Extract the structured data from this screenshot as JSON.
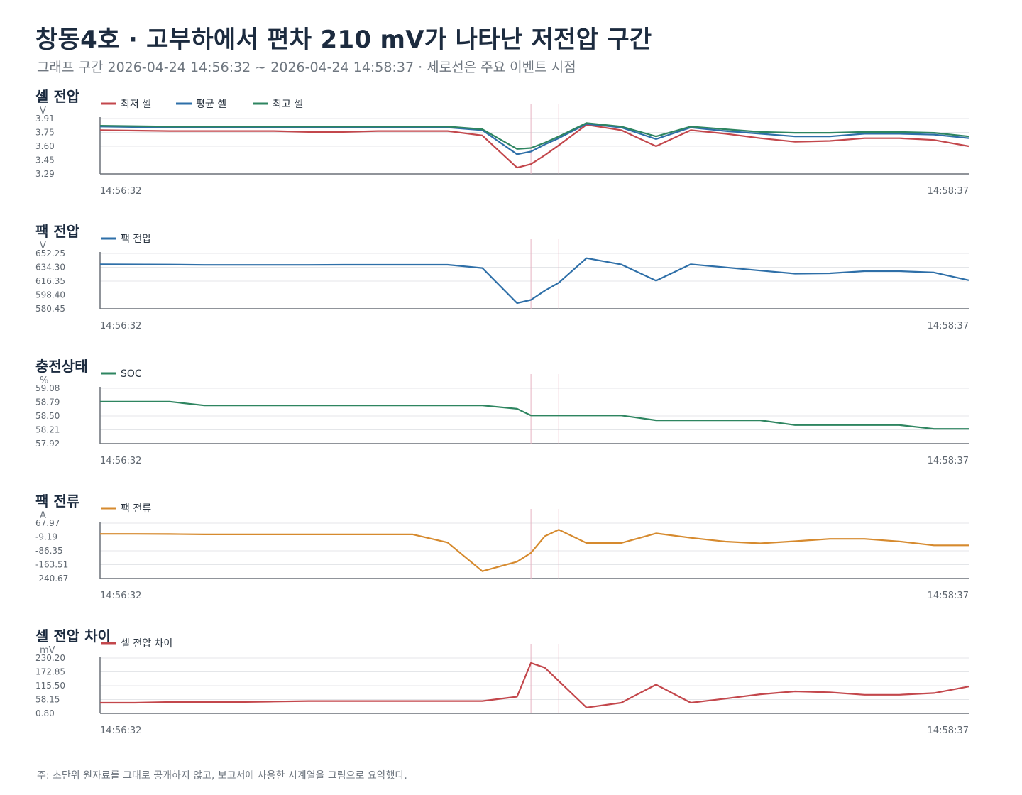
{
  "title": "창동4호 · 고부하에서 편차 210 mV가 나타난 저전압 구간",
  "subtitle": "그래프 구간 2026-04-24 14:56:32 ~ 2026-04-24 14:58:37 · 세로선은 주요 이벤트 시점",
  "footnote": "주: 초단위 원자료를 그대로 공개하지 않고, 보고서에 사용한 시계열을 그림으로 요약했다.",
  "colors": {
    "red": "#c3474c",
    "blue": "#2e6fa8",
    "green": "#2e8560",
    "orange": "#d68a2e",
    "grid": "#e4e6e9",
    "axis": "#6b7178",
    "event": "#e6b3c2"
  },
  "chart_data": [
    {
      "type": "line",
      "title": "셀 전압",
      "ylabel": "V",
      "yticks": [
        "3.91",
        "3.75",
        "3.60",
        "3.45",
        "3.29"
      ],
      "ylim": [
        3.29,
        3.91
      ],
      "x_start": "14:56:32",
      "x_end": "14:58:37",
      "x_seconds": [
        0,
        10,
        15,
        20,
        25,
        30,
        35,
        40,
        45,
        50,
        55,
        60,
        62,
        64,
        66,
        70,
        75,
        80,
        85,
        90,
        95,
        100,
        105,
        110,
        115,
        120,
        125
      ],
      "event_lines_seconds": [
        62,
        66
      ],
      "series": [
        {
          "name": "최저 셀",
          "color": "#c3474c",
          "values": [
            3.78,
            3.77,
            3.77,
            3.77,
            3.77,
            3.76,
            3.76,
            3.77,
            3.77,
            3.77,
            3.72,
            3.36,
            3.4,
            3.5,
            3.61,
            3.84,
            3.78,
            3.6,
            3.78,
            3.74,
            3.69,
            3.65,
            3.66,
            3.69,
            3.69,
            3.67,
            3.6
          ]
        },
        {
          "name": "평균 셀",
          "color": "#2e6fa8",
          "values": [
            3.82,
            3.81,
            3.81,
            3.81,
            3.81,
            3.81,
            3.81,
            3.81,
            3.81,
            3.81,
            3.78,
            3.51,
            3.54,
            3.62,
            3.69,
            3.85,
            3.81,
            3.68,
            3.81,
            3.77,
            3.74,
            3.71,
            3.71,
            3.74,
            3.74,
            3.73,
            3.69
          ]
        },
        {
          "name": "최고 셀",
          "color": "#2e8560",
          "values": [
            3.83,
            3.82,
            3.82,
            3.82,
            3.82,
            3.82,
            3.82,
            3.82,
            3.82,
            3.82,
            3.79,
            3.57,
            3.58,
            3.64,
            3.71,
            3.86,
            3.82,
            3.71,
            3.82,
            3.79,
            3.76,
            3.75,
            3.75,
            3.76,
            3.76,
            3.75,
            3.71
          ]
        }
      ]
    },
    {
      "type": "line",
      "title": "팩 전압",
      "ylabel": "V",
      "yticks": [
        "652.25",
        "634.30",
        "616.35",
        "598.40",
        "580.45"
      ],
      "ylim": [
        580.45,
        652.25
      ],
      "x_start": "14:56:32",
      "x_end": "14:58:37",
      "x_seconds": [
        0,
        10,
        15,
        20,
        25,
        30,
        35,
        40,
        45,
        50,
        55,
        60,
        62,
        64,
        66,
        70,
        75,
        80,
        85,
        90,
        95,
        100,
        105,
        110,
        115,
        120,
        125
      ],
      "event_lines_seconds": [
        62,
        66
      ],
      "series": [
        {
          "name": "팩 전압",
          "color": "#2e6fa8",
          "values": [
            638.2,
            637.8,
            637.3,
            637.3,
            637.3,
            637.3,
            637.5,
            637.5,
            637.5,
            637.5,
            633.3,
            587.8,
            592.0,
            604.0,
            614.2,
            646.1,
            637.9,
            616.9,
            638.2,
            634.1,
            630.0,
            626.0,
            626.5,
            629.2,
            629.2,
            627.5,
            617.5
          ]
        }
      ]
    },
    {
      "type": "line",
      "title": "충전상태",
      "ylabel": "%",
      "yticks": [
        "59.08",
        "58.79",
        "58.50",
        "58.21",
        "57.92"
      ],
      "ylim": [
        57.92,
        59.08
      ],
      "x_start": "14:56:32",
      "x_end": "14:58:37",
      "x_seconds": [
        0,
        5,
        10,
        15,
        20,
        25,
        30,
        35,
        40,
        45,
        50,
        55,
        60,
        62,
        64,
        66,
        70,
        75,
        80,
        85,
        90,
        95,
        100,
        105,
        110,
        115,
        120,
        125
      ],
      "event_lines_seconds": [
        62,
        66
      ],
      "series": [
        {
          "name": "SOC",
          "color": "#2e8560",
          "values": [
            58.8,
            58.8,
            58.8,
            58.72,
            58.72,
            58.72,
            58.72,
            58.72,
            58.72,
            58.72,
            58.72,
            58.72,
            58.65,
            58.51,
            58.51,
            58.51,
            58.51,
            58.51,
            58.41,
            58.41,
            58.41,
            58.41,
            58.31,
            58.31,
            58.31,
            58.31,
            58.23,
            58.23
          ]
        }
      ]
    },
    {
      "type": "line",
      "title": "팩 전류",
      "ylabel": "A",
      "yticks": [
        "67.97",
        "-9.19",
        "-86.35",
        "-163.51",
        "-240.67"
      ],
      "ylim": [
        -240.67,
        67.97
      ],
      "x_start": "14:56:32",
      "x_end": "14:58:37",
      "x_seconds": [
        0,
        5,
        10,
        15,
        20,
        25,
        30,
        35,
        40,
        45,
        50,
        55,
        60,
        62,
        64,
        66,
        70,
        75,
        80,
        85,
        90,
        95,
        100,
        105,
        110,
        115,
        120,
        125
      ],
      "event_lines_seconds": [
        62,
        66
      ],
      "series": [
        {
          "name": "팩 전류",
          "color": "#d68a2e",
          "values": [
            8.0,
            8.0,
            7.0,
            5.0,
            5.0,
            5.0,
            5.0,
            5.0,
            5.0,
            5.0,
            -40.0,
            -200.0,
            -147.0,
            -98.0,
            -5.0,
            31.0,
            -43.0,
            -43.0,
            11.0,
            -14.0,
            -35.0,
            -45.0,
            -33.0,
            -20.0,
            -20.0,
            -34.0,
            -56.0,
            -56.0
          ]
        }
      ]
    },
    {
      "type": "line",
      "title": "셀 전압 차이",
      "ylabel": "mV",
      "yticks": [
        "230.20",
        "172.85",
        "115.50",
        "58.15",
        "0.80"
      ],
      "ylim": [
        0.8,
        230.2
      ],
      "x_start": "14:56:32",
      "x_end": "14:58:37",
      "x_seconds": [
        0,
        5,
        10,
        15,
        20,
        25,
        30,
        35,
        40,
        45,
        50,
        55,
        60,
        62,
        64,
        66,
        70,
        75,
        80,
        85,
        90,
        95,
        100,
        105,
        110,
        115,
        120,
        125
      ],
      "event_lines_seconds": [
        62,
        66
      ],
      "series": [
        {
          "name": "셀 전압 차이",
          "color": "#c3474c",
          "values": [
            45.0,
            45.0,
            48.0,
            48.0,
            48.0,
            50.0,
            52.0,
            52.0,
            52.0,
            52.0,
            52.0,
            52.0,
            70.0,
            210.0,
            190.0,
            135.0,
            25.0,
            45.0,
            120.0,
            45.0,
            62.0,
            80.0,
            92.0,
            88.0,
            78.0,
            78.0,
            85.0,
            112.0
          ]
        }
      ]
    }
  ]
}
